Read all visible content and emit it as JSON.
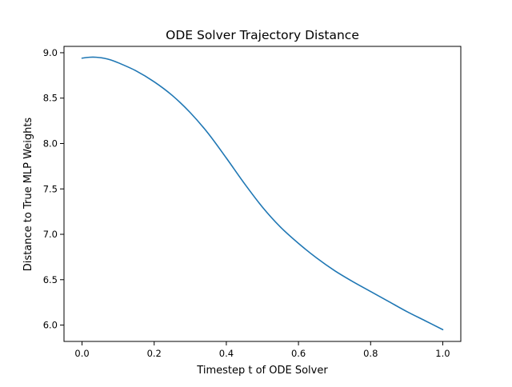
{
  "chart_data": {
    "type": "line",
    "title": "ODE Solver Trajectory Distance",
    "xlabel": "Timestep t of ODE Solver",
    "ylabel": "Distance to True MLP Weights",
    "xlim": [
      -0.05,
      1.05
    ],
    "ylim": [
      5.82,
      9.07
    ],
    "xticks": [
      0.0,
      0.2,
      0.4,
      0.6,
      0.8,
      1.0
    ],
    "xtick_labels": [
      "0.0",
      "0.2",
      "0.4",
      "0.6",
      "0.8",
      "1.0"
    ],
    "yticks": [
      6.0,
      6.5,
      7.0,
      7.5,
      8.0,
      8.5,
      9.0
    ],
    "ytick_labels": [
      "6.0",
      "6.5",
      "7.0",
      "7.5",
      "8.0",
      "8.5",
      "9.0"
    ],
    "grid": false,
    "legend": "none",
    "series": [
      {
        "color": "#1f77b4",
        "x": [
          0.0,
          0.02,
          0.04,
          0.06,
          0.08,
          0.1,
          0.15,
          0.2,
          0.25,
          0.3,
          0.35,
          0.4,
          0.45,
          0.5,
          0.55,
          0.6,
          0.65,
          0.7,
          0.75,
          0.8,
          0.85,
          0.9,
          0.95,
          1.0
        ],
        "y": [
          8.94,
          8.95,
          8.95,
          8.94,
          8.92,
          8.89,
          8.8,
          8.68,
          8.53,
          8.34,
          8.11,
          7.84,
          7.56,
          7.3,
          7.08,
          6.9,
          6.74,
          6.6,
          6.48,
          6.37,
          6.26,
          6.15,
          6.05,
          5.95
        ]
      }
    ]
  }
}
